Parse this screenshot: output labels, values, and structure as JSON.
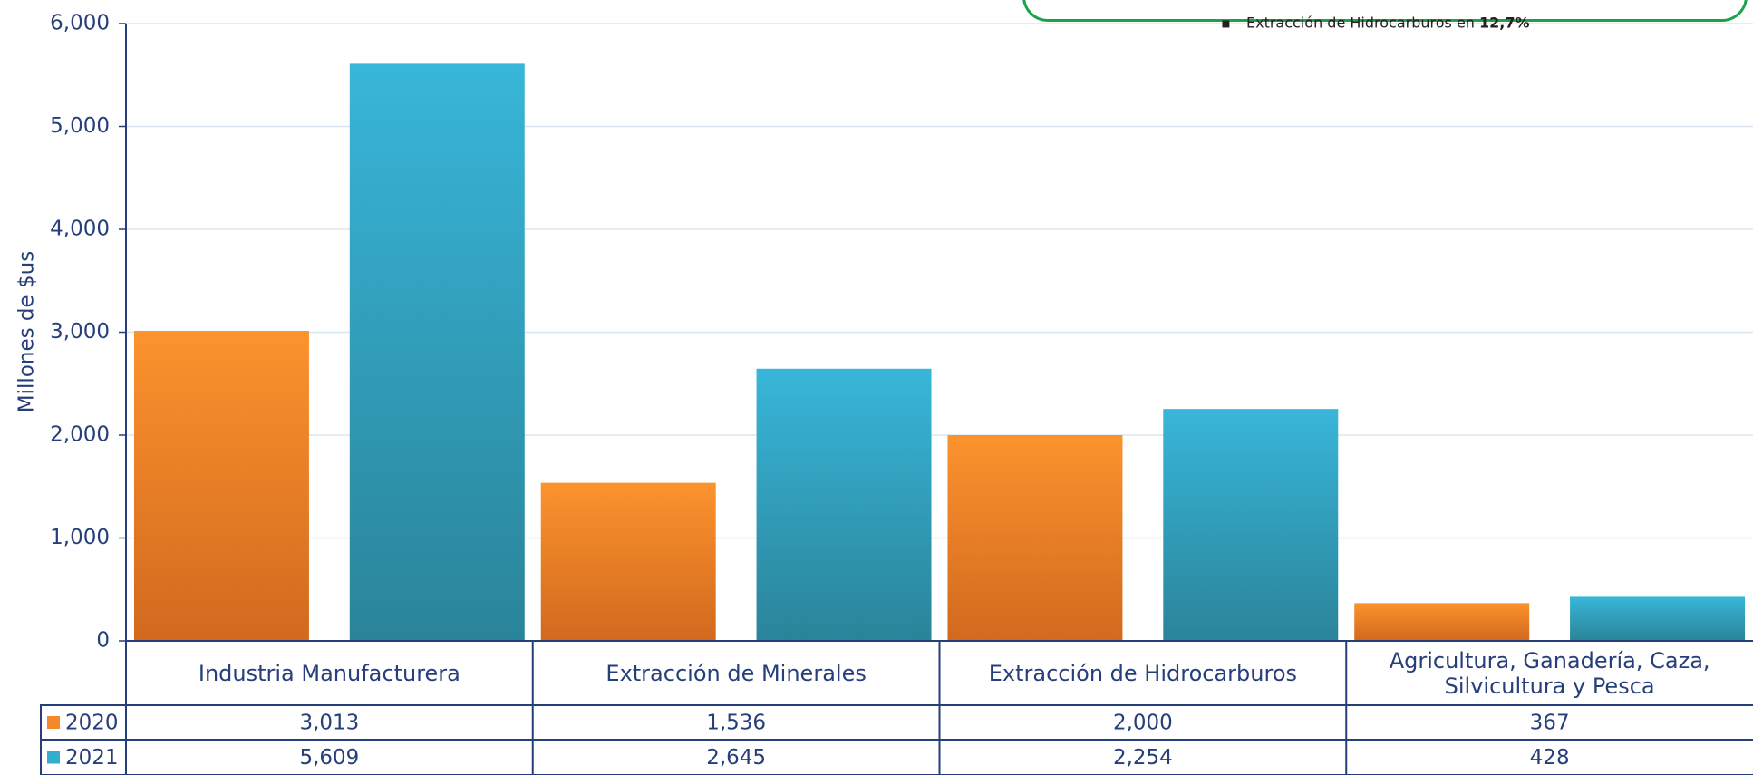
{
  "chart_data": {
    "type": "bar",
    "y_label": "Millones de $us",
    "annotation": {
      "text": "Extracción de Hidrocarburos  en",
      "highlight": "12,7%"
    },
    "categories": [
      "Industria Manufacturera",
      "Extracción de Minerales",
      "Extracción de Hidrocarburos",
      "Agricultura, Ganadería, Caza, Silvicultura y Pesca"
    ],
    "series": [
      {
        "name": "2020",
        "color": "#f28a2b",
        "values": [
          3013,
          1536,
          2000,
          367
        ],
        "value_labels": [
          "3,013",
          "1,536",
          "2,000",
          "367"
        ]
      },
      {
        "name": "2021",
        "color": "#33aed1",
        "values": [
          5609,
          2645,
          2254,
          428
        ],
        "value_labels": [
          "5,609",
          "2,645",
          "2,254",
          "428"
        ]
      }
    ],
    "ylim": [
      0,
      6000
    ],
    "yticks": [
      0,
      {
        "value": 1000,
        "label": "1,000"
      },
      {
        "value": 2000,
        "label": "2,000"
      },
      {
        "value": 3000,
        "label": "3,000"
      },
      {
        "value": 4000,
        "label": "4,000"
      },
      {
        "value": 5000,
        "label": "5,000"
      },
      {
        "value": 6000,
        "label": "6,000"
      }
    ],
    "grid": true
  }
}
